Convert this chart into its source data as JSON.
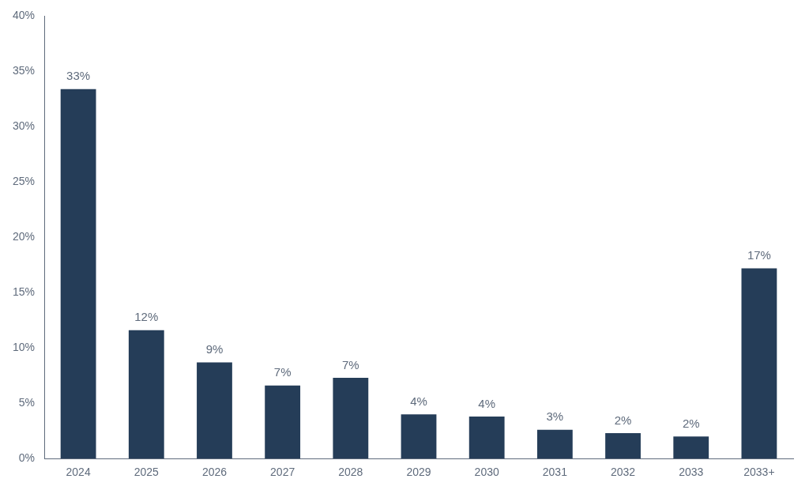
{
  "chart_data": {
    "type": "bar",
    "categories": [
      "2024",
      "2025",
      "2026",
      "2027",
      "2028",
      "2029",
      "2030",
      "2031",
      "2032",
      "2033",
      "2033+"
    ],
    "values": [
      33.4,
      11.6,
      8.7,
      6.6,
      7.3,
      4.0,
      3.8,
      2.6,
      2.3,
      2.0,
      17.2
    ],
    "value_labels": [
      "33%",
      "12%",
      "9%",
      "7%",
      "7%",
      "4%",
      "4%",
      "3%",
      "2%",
      "2%",
      "17%"
    ],
    "color": "#253d58",
    "ylim": [
      0,
      40
    ],
    "yticks": [
      {
        "value": 0,
        "label": "0%"
      },
      {
        "value": 5,
        "label": "5%"
      },
      {
        "value": 10,
        "label": "10%"
      },
      {
        "value": 15,
        "label": "15%"
      },
      {
        "value": 20,
        "label": "20%"
      },
      {
        "value": 25,
        "label": "25%"
      },
      {
        "value": 30,
        "label": "30%"
      },
      {
        "value": 35,
        "label": "35%"
      },
      {
        "value": 40,
        "label": "40%"
      }
    ],
    "grid": false,
    "legend": false
  }
}
